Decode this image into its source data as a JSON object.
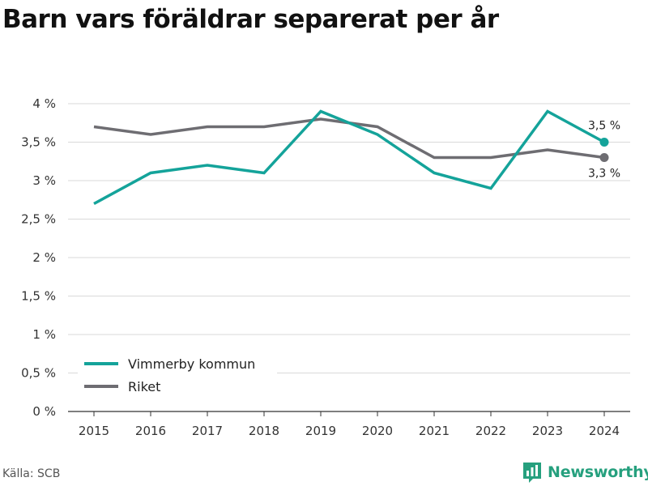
{
  "title": "Barn vars föräldrar separerat per år",
  "source": "Källa: SCB",
  "brand": {
    "name": "Newsworthy",
    "icon": "bar-chart-logo-icon",
    "color": "#26a07e"
  },
  "chart_data": {
    "type": "line",
    "title": "Barn vars föräldrar separerat per år",
    "xlabel": "",
    "ylabel": "",
    "x": [
      "2015",
      "2016",
      "2017",
      "2018",
      "2019",
      "2020",
      "2021",
      "2022",
      "2023",
      "2024"
    ],
    "ylim": [
      0,
      4
    ],
    "yticks": [
      0,
      0.5,
      1,
      1.5,
      2,
      2.5,
      3,
      3.5,
      4
    ],
    "ytick_labels": [
      "0 %",
      "0,5 %",
      "1 %",
      "1,5 %",
      "2 %",
      "2,5 %",
      "3 %",
      "3,5 %",
      "4 %"
    ],
    "grid": true,
    "legend_position": "bottom-left",
    "series": [
      {
        "name": "Vimmerby kommun",
        "color": "#14a39a",
        "values": [
          2.7,
          3.1,
          3.2,
          3.1,
          3.9,
          3.6,
          3.1,
          2.9,
          3.9,
          3.5
        ],
        "end_label": "3,5 %"
      },
      {
        "name": "Riket",
        "color": "#6e6d72",
        "values": [
          3.7,
          3.6,
          3.7,
          3.7,
          3.8,
          3.7,
          3.3,
          3.3,
          3.4,
          3.3
        ],
        "end_label": "3,3 %"
      }
    ]
  }
}
